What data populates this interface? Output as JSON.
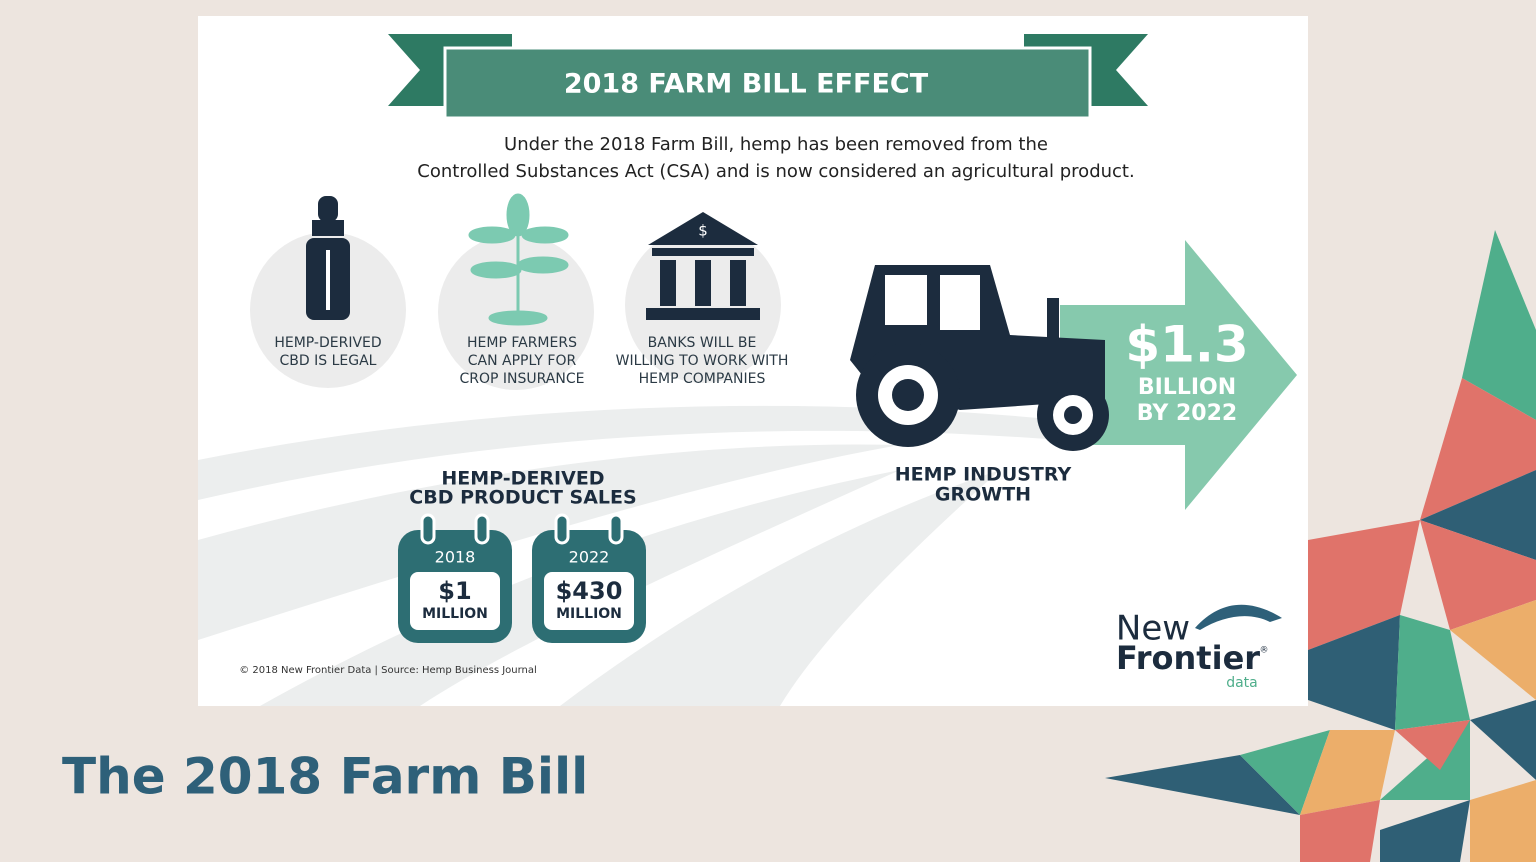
{
  "infographic": {
    "banner_title": "2018 FARM BILL EFFECT",
    "intro": [
      "Under the 2018 Farm Bill, hemp has been removed from the",
      "Controlled Substances Act (CSA) and is now considered an agricultural product."
    ],
    "items": [
      {
        "label": [
          "HEMP-DERIVED",
          "CBD IS LEGAL"
        ]
      },
      {
        "label": [
          "HEMP FARMERS",
          "CAN APPLY FOR",
          "CROP INSURANCE"
        ]
      },
      {
        "icon_text": "$",
        "label": [
          "BANKS WILL BE",
          "WILLING TO WORK WITH",
          "HEMP COMPANIES"
        ]
      }
    ],
    "growth": {
      "amount": "$1.3",
      "unit": "BILLION",
      "when": "BY 2022",
      "label": [
        "HEMP INDUSTRY",
        "GROWTH"
      ]
    },
    "sales": {
      "title": [
        "HEMP-DERIVED",
        "CBD PRODUCT SALES"
      ],
      "calendars": [
        {
          "year": "2018",
          "amount": "$1",
          "unit": "MILLION"
        },
        {
          "year": "2022",
          "amount": "$430",
          "unit": "MILLION"
        }
      ]
    },
    "footer": "© 2018  New Frontier Data | Source: Hemp Business Journal",
    "logo": {
      "line1": "New",
      "line2": "Frontier",
      "mark": "®",
      "line3": "data"
    }
  },
  "slide_title": "The 2018 Farm Bill"
}
